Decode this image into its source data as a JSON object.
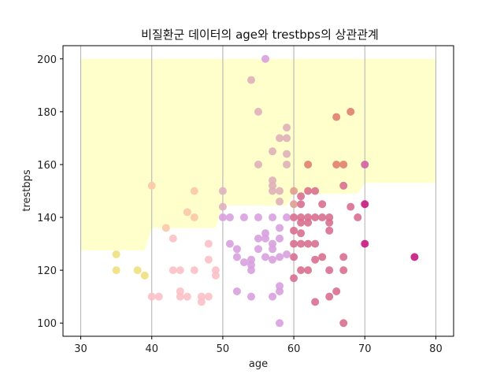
{
  "chart_data": {
    "type": "scatter",
    "title": "비질환군 데이터의 age와 trestbps의 상관관계",
    "xlabel": "age",
    "ylabel": "trestbps",
    "xlim": [
      27.5,
      82.5
    ],
    "ylim": [
      95,
      205
    ],
    "x_ticks": [
      30,
      40,
      50,
      60,
      70,
      80
    ],
    "y_ticks": [
      100,
      120,
      140,
      160,
      180,
      200
    ],
    "grid": "vertical",
    "colors": {
      "highlight": "#ffffcc",
      "grid": "#b0b0b0",
      "axis": "#000000"
    },
    "highlight_band": {
      "x": [
        30,
        31,
        39,
        40,
        41,
        49,
        50,
        51,
        59,
        60,
        61,
        69,
        70,
        71,
        80
      ],
      "lower": [
        127.5,
        127.5,
        127.5,
        136,
        136,
        136,
        144.5,
        144.5,
        144.5,
        149,
        149,
        149,
        153,
        153,
        153
      ],
      "upper": 200
    },
    "points": [
      {
        "x": 35,
        "y": 126,
        "color": "#f0e080"
      },
      {
        "x": 35,
        "y": 120,
        "color": "#f0e080"
      },
      {
        "x": 38,
        "y": 120,
        "color": "#f0e080"
      },
      {
        "x": 39,
        "y": 118,
        "color": "#f0e080"
      },
      {
        "x": 40,
        "y": 152,
        "color": "#fcc8a8"
      },
      {
        "x": 40,
        "y": 110,
        "color": "#fcc0c8"
      },
      {
        "x": 41,
        "y": 110,
        "color": "#fcc0c8"
      },
      {
        "x": 42,
        "y": 136,
        "color": "#fcc8a8"
      },
      {
        "x": 43,
        "y": 132,
        "color": "#fcc0c8"
      },
      {
        "x": 43,
        "y": 120,
        "color": "#fcc0c8"
      },
      {
        "x": 44,
        "y": 120,
        "color": "#fcc0c8"
      },
      {
        "x": 44,
        "y": 112,
        "color": "#fcc0c8"
      },
      {
        "x": 44,
        "y": 110,
        "color": "#fcc0c8"
      },
      {
        "x": 45,
        "y": 142,
        "color": "#fcc8a8"
      },
      {
        "x": 45,
        "y": 110,
        "color": "#fcc0c8"
      },
      {
        "x": 46,
        "y": 150,
        "color": "#fcc8a8"
      },
      {
        "x": 46,
        "y": 140,
        "color": "#fcc8a8"
      },
      {
        "x": 46,
        "y": 120,
        "color": "#fcc0c8"
      },
      {
        "x": 47,
        "y": 110,
        "color": "#fcc0c8"
      },
      {
        "x": 47,
        "y": 108,
        "color": "#fcc0c8"
      },
      {
        "x": 48,
        "y": 130,
        "color": "#fcc0c8"
      },
      {
        "x": 48,
        "y": 124,
        "color": "#fcc0c8"
      },
      {
        "x": 48,
        "y": 110,
        "color": "#fcc0c8"
      },
      {
        "x": 49,
        "y": 120,
        "color": "#fcc0c8"
      },
      {
        "x": 49,
        "y": 118,
        "color": "#fcc0c8"
      },
      {
        "x": 50,
        "y": 150,
        "color": "#e0b0c0"
      },
      {
        "x": 50,
        "y": 144,
        "color": "#e0b0c0"
      },
      {
        "x": 50,
        "y": 140,
        "color": "#d8a0e0"
      },
      {
        "x": 51,
        "y": 140,
        "color": "#d8a0e0"
      },
      {
        "x": 51,
        "y": 130,
        "color": "#d8a0e0"
      },
      {
        "x": 52,
        "y": 128,
        "color": "#d8a0e0"
      },
      {
        "x": 52,
        "y": 125,
        "color": "#d8a0e0"
      },
      {
        "x": 52,
        "y": 112,
        "color": "#d8a0e0"
      },
      {
        "x": 53,
        "y": 140,
        "color": "#d8a0e0"
      },
      {
        "x": 53,
        "y": 123,
        "color": "#d8a0e0"
      },
      {
        "x": 54,
        "y": 192,
        "color": "#e0b0b8"
      },
      {
        "x": 54,
        "y": 124,
        "color": "#d8a0e0"
      },
      {
        "x": 54,
        "y": 122,
        "color": "#d8a0e0"
      },
      {
        "x": 54,
        "y": 120,
        "color": "#d8a0e0"
      },
      {
        "x": 54,
        "y": 110,
        "color": "#d8a0e0"
      },
      {
        "x": 55,
        "y": 180,
        "color": "#e0b0b8"
      },
      {
        "x": 55,
        "y": 160,
        "color": "#e0b0b8"
      },
      {
        "x": 55,
        "y": 140,
        "color": "#d8a0e0"
      },
      {
        "x": 55,
        "y": 132,
        "color": "#d8a0e0"
      },
      {
        "x": 55,
        "y": 128,
        "color": "#d8a0e0"
      },
      {
        "x": 56,
        "y": 200,
        "color": "#d8a0e0"
      },
      {
        "x": 56,
        "y": 134,
        "color": "#d8a0e0"
      },
      {
        "x": 56,
        "y": 132,
        "color": "#d8a0e0"
      },
      {
        "x": 56,
        "y": 125,
        "color": "#d8a0e0"
      },
      {
        "x": 57,
        "y": 165,
        "color": "#e0b0b8"
      },
      {
        "x": 57,
        "y": 154,
        "color": "#e0b0b8"
      },
      {
        "x": 57,
        "y": 152,
        "color": "#e0b0b8"
      },
      {
        "x": 57,
        "y": 150,
        "color": "#e0b0b8"
      },
      {
        "x": 57,
        "y": 140,
        "color": "#d8a0e0"
      },
      {
        "x": 57,
        "y": 130,
        "color": "#d8a0e0"
      },
      {
        "x": 57,
        "y": 128,
        "color": "#d8a0e0"
      },
      {
        "x": 57,
        "y": 124,
        "color": "#d8a0e0"
      },
      {
        "x": 57,
        "y": 110,
        "color": "#d8a0e0"
      },
      {
        "x": 58,
        "y": 170,
        "color": "#e0b0b8"
      },
      {
        "x": 58,
        "y": 150,
        "color": "#e0b0b8"
      },
      {
        "x": 58,
        "y": 146,
        "color": "#e0b0b8"
      },
      {
        "x": 58,
        "y": 136,
        "color": "#d8a0e0"
      },
      {
        "x": 58,
        "y": 132,
        "color": "#d8a0e0"
      },
      {
        "x": 58,
        "y": 125,
        "color": "#d8a0e0"
      },
      {
        "x": 58,
        "y": 114,
        "color": "#d8a0e0"
      },
      {
        "x": 58,
        "y": 112,
        "color": "#d8a0e0"
      },
      {
        "x": 58,
        "y": 100,
        "color": "#d8a0e0"
      },
      {
        "x": 59,
        "y": 174,
        "color": "#e0b0b8"
      },
      {
        "x": 59,
        "y": 170,
        "color": "#e0b0b8"
      },
      {
        "x": 59,
        "y": 164,
        "color": "#e0b0b8"
      },
      {
        "x": 59,
        "y": 160,
        "color": "#e0b0b8"
      },
      {
        "x": 59,
        "y": 140,
        "color": "#d8a0e0"
      },
      {
        "x": 59,
        "y": 126,
        "color": "#d8a0e0"
      },
      {
        "x": 60,
        "y": 150,
        "color": "#e0a090"
      },
      {
        "x": 60,
        "y": 145,
        "color": "#e0a090"
      },
      {
        "x": 60,
        "y": 140,
        "color": "#d87090"
      },
      {
        "x": 60,
        "y": 135,
        "color": "#d87090"
      },
      {
        "x": 60,
        "y": 130,
        "color": "#d87090"
      },
      {
        "x": 60,
        "y": 125,
        "color": "#d87090"
      },
      {
        "x": 60,
        "y": 117,
        "color": "#d87090"
      },
      {
        "x": 61,
        "y": 148,
        "color": "#d87090"
      },
      {
        "x": 61,
        "y": 145,
        "color": "#d87090"
      },
      {
        "x": 61,
        "y": 140,
        "color": "#d87090"
      },
      {
        "x": 61,
        "y": 138,
        "color": "#d87090"
      },
      {
        "x": 61,
        "y": 134,
        "color": "#d87090"
      },
      {
        "x": 61,
        "y": 130,
        "color": "#d87090"
      },
      {
        "x": 61,
        "y": 120,
        "color": "#d87090"
      },
      {
        "x": 62,
        "y": 160,
        "color": "#e08070"
      },
      {
        "x": 62,
        "y": 150,
        "color": "#d87090"
      },
      {
        "x": 62,
        "y": 140,
        "color": "#d87090"
      },
      {
        "x": 62,
        "y": 138,
        "color": "#d87090"
      },
      {
        "x": 62,
        "y": 130,
        "color": "#d87090"
      },
      {
        "x": 62,
        "y": 120,
        "color": "#d87090"
      },
      {
        "x": 63,
        "y": 150,
        "color": "#d87090"
      },
      {
        "x": 63,
        "y": 140,
        "color": "#d87090"
      },
      {
        "x": 63,
        "y": 130,
        "color": "#d87090"
      },
      {
        "x": 63,
        "y": 124,
        "color": "#d87090"
      },
      {
        "x": 63,
        "y": 108,
        "color": "#d87090"
      },
      {
        "x": 64,
        "y": 145,
        "color": "#d87090"
      },
      {
        "x": 64,
        "y": 140,
        "color": "#d87090"
      },
      {
        "x": 64,
        "y": 125,
        "color": "#d87090"
      },
      {
        "x": 65,
        "y": 140,
        "color": "#d87090"
      },
      {
        "x": 65,
        "y": 138,
        "color": "#d87090"
      },
      {
        "x": 65,
        "y": 135,
        "color": "#d87090"
      },
      {
        "x": 65,
        "y": 120,
        "color": "#d87090"
      },
      {
        "x": 65,
        "y": 110,
        "color": "#d87090"
      },
      {
        "x": 66,
        "y": 178,
        "color": "#e08070"
      },
      {
        "x": 66,
        "y": 160,
        "color": "#e08070"
      },
      {
        "x": 66,
        "y": 112,
        "color": "#d87090"
      },
      {
        "x": 67,
        "y": 160,
        "color": "#e08070"
      },
      {
        "x": 67,
        "y": 152,
        "color": "#d87090"
      },
      {
        "x": 67,
        "y": 125,
        "color": "#d87090"
      },
      {
        "x": 67,
        "y": 120,
        "color": "#d87090"
      },
      {
        "x": 67,
        "y": 100,
        "color": "#d87090"
      },
      {
        "x": 68,
        "y": 180,
        "color": "#e08070"
      },
      {
        "x": 68,
        "y": 144,
        "color": "#d87090"
      },
      {
        "x": 69,
        "y": 140,
        "color": "#d87090"
      },
      {
        "x": 70,
        "y": 160,
        "color": "#d060a0"
      },
      {
        "x": 70,
        "y": 145,
        "color": "#c81880"
      },
      {
        "x": 70,
        "y": 130,
        "color": "#c81880"
      },
      {
        "x": 77,
        "y": 125,
        "color": "#c81880"
      }
    ]
  }
}
